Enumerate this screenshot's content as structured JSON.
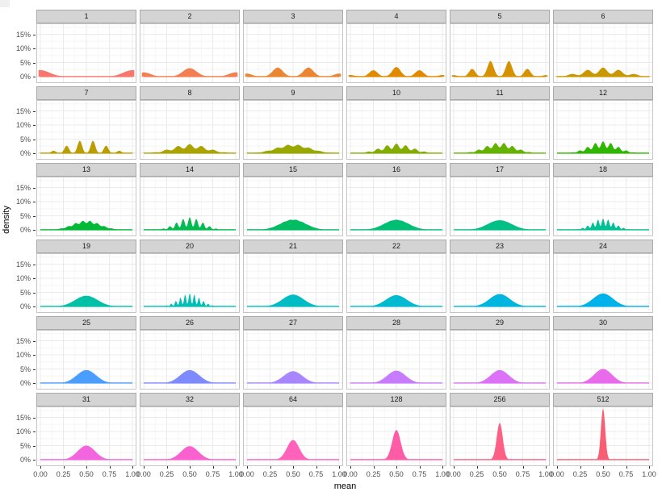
{
  "chart_data": {
    "type": "area",
    "subtype": "faceted-density",
    "title": "",
    "xlabel": "mean",
    "ylabel": "density",
    "x_ticks": [
      "0.00",
      "0.25",
      "0.50",
      "0.75",
      "1.00"
    ],
    "x_tick_values": [
      0,
      0.25,
      0.5,
      0.75,
      1
    ],
    "y_ticks": [
      "0%",
      "5%",
      "10%",
      "15%"
    ],
    "y_tick_values": [
      0,
      5,
      10,
      15
    ],
    "xlim": [
      0,
      1
    ],
    "ylim_pct": [
      0,
      19
    ],
    "grid": "on",
    "legend": "none",
    "facet_layout": {
      "rows": 6,
      "cols": 6
    },
    "facets": [
      {
        "label": "1",
        "n": 1,
        "color": "#F8766D",
        "peak_pct": 2.3,
        "bandwidth": 0.1
      },
      {
        "label": "2",
        "n": 2,
        "color": "#F27E51",
        "peak_pct": 3.0,
        "bandwidth": 0.075
      },
      {
        "label": "3",
        "n": 3,
        "color": "#EA8531",
        "peak_pct": 3.2,
        "bandwidth": 0.055
      },
      {
        "label": "4",
        "n": 4,
        "color": "#E18A00",
        "peak_pct": 3.4,
        "bandwidth": 0.045
      },
      {
        "label": "5",
        "n": 5,
        "color": "#D69100",
        "peak_pct": 5.5,
        "bandwidth": 0.034
      },
      {
        "label": "6",
        "n": 6,
        "color": "#C99800",
        "peak_pct": 3.2,
        "bandwidth": 0.045
      },
      {
        "label": "7",
        "n": 7,
        "color": "#BB9D00",
        "peak_pct": 4.4,
        "bandwidth": 0.025
      },
      {
        "label": "8",
        "n": 8,
        "color": "#ABA300",
        "peak_pct": 3.2,
        "bandwidth": 0.04
      },
      {
        "label": "9",
        "n": 9,
        "color": "#98A800",
        "peak_pct": 3.0,
        "bandwidth": 0.042
      },
      {
        "label": "10",
        "n": 10,
        "color": "#82AD00",
        "peak_pct": 3.4,
        "bandwidth": 0.03
      },
      {
        "label": "11",
        "n": 11,
        "color": "#64B200",
        "peak_pct": 3.6,
        "bandwidth": 0.029
      },
      {
        "label": "12",
        "n": 12,
        "color": "#2FB600",
        "peak_pct": 4.2,
        "bandwidth": 0.025
      },
      {
        "label": "13",
        "n": 13,
        "color": "#00B934",
        "peak_pct": 3.2,
        "bandwidth": 0.028
      },
      {
        "label": "14",
        "n": 14,
        "color": "#00BB4E",
        "peak_pct": 4.4,
        "bandwidth": 0.018
      },
      {
        "label": "15",
        "n": 15,
        "color": "#00BD62",
        "peak_pct": 3.6,
        "bandwidth": 0.032
      },
      {
        "label": "16",
        "n": 16,
        "color": "#00BF74",
        "peak_pct": 3.6,
        "bandwidth": 0.032
      },
      {
        "label": "17",
        "n": 17,
        "color": "#00C085",
        "peak_pct": 3.4,
        "bandwidth": 0.035
      },
      {
        "label": "18",
        "n": 18,
        "color": "#00C096",
        "peak_pct": 4.0,
        "bandwidth": 0.015
      },
      {
        "label": "19",
        "n": 19,
        "color": "#00C0A6",
        "peak_pct": 3.8,
        "bandwidth": 0.032
      },
      {
        "label": "20",
        "n": 20,
        "color": "#00BFB5",
        "peak_pct": 4.6,
        "bandwidth": 0.012
      },
      {
        "label": "21",
        "n": 21,
        "color": "#00BDC3",
        "peak_pct": 4.2,
        "bandwidth": 0.03
      },
      {
        "label": "22",
        "n": 22,
        "color": "#00BAD1",
        "peak_pct": 4.0,
        "bandwidth": 0.032
      },
      {
        "label": "23",
        "n": 23,
        "color": "#00B6DE",
        "peak_pct": 4.4,
        "bandwidth": 0.03
      },
      {
        "label": "24",
        "n": 24,
        "color": "#00B1EA",
        "peak_pct": 4.6,
        "bandwidth": 0.03
      },
      {
        "label": "25",
        "n": 25,
        "color": "#4A9EFF",
        "peak_pct": 4.6,
        "bandwidth": 0.024
      },
      {
        "label": "26",
        "n": 26,
        "color": "#7E8BFF",
        "peak_pct": 4.6,
        "bandwidth": 0.028
      },
      {
        "label": "27",
        "n": 27,
        "color": "#A886FF",
        "peak_pct": 4.2,
        "bandwidth": 0.03
      },
      {
        "label": "28",
        "n": 28,
        "color": "#C77CFF",
        "peak_pct": 4.4,
        "bandwidth": 0.028
      },
      {
        "label": "29",
        "n": 29,
        "color": "#DB72F7",
        "peak_pct": 4.6,
        "bandwidth": 0.028
      },
      {
        "label": "30",
        "n": 30,
        "color": "#E96BEC",
        "peak_pct": 5.0,
        "bandwidth": 0.028
      },
      {
        "label": "31",
        "n": 31,
        "color": "#F265DE",
        "peak_pct": 5.0,
        "bandwidth": 0.026
      },
      {
        "label": "32",
        "n": 32,
        "color": "#F961CE",
        "peak_pct": 4.8,
        "bandwidth": 0.028
      },
      {
        "label": "64",
        "n": 64,
        "color": "#FF61BB",
        "peak_pct": 7.0,
        "bandwidth": 0.02
      },
      {
        "label": "128",
        "n": 128,
        "color": "#FF5CA8",
        "peak_pct": 10.5,
        "bandwidth": 0.014
      },
      {
        "label": "256",
        "n": 256,
        "color": "#FD5F85",
        "peak_pct": 13.0,
        "bandwidth": 0.01
      },
      {
        "label": "512",
        "n": 512,
        "color": "#FA5E72",
        "peak_pct": 18.0,
        "bandwidth": 0.007
      }
    ]
  }
}
